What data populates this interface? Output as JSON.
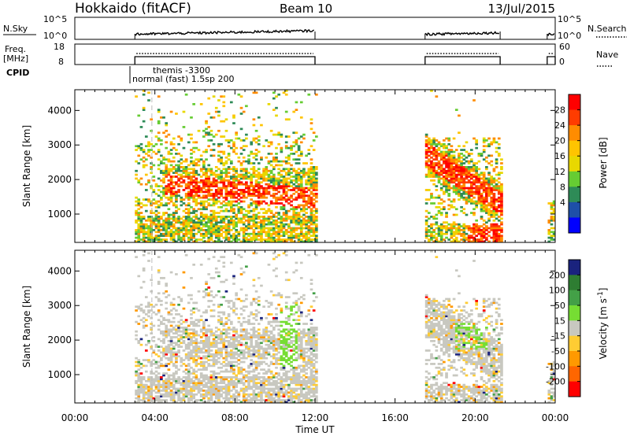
{
  "header": {
    "radar": "Hokkaido (fitACF)",
    "beam": "Beam 10",
    "date": "13/Jul/2015"
  },
  "noise_panel": {
    "left_label": "N.Sky",
    "right_label": "N.Search",
    "left_ticks": [
      "10^5",
      "10^0"
    ],
    "right_ticks": [
      "10^5",
      "10^0"
    ]
  },
  "freq_panel": {
    "left_label_1": "Freq.",
    "left_label_2": "[MHz]",
    "right_label": "Nave",
    "left_ticks": [
      "18",
      "8"
    ],
    "right_ticks": [
      "60",
      "0"
    ]
  },
  "cpid": {
    "label": "CPID",
    "annotation_1": "themis -3300",
    "annotation_2": "normal (fast) 1.5sp 200"
  },
  "axes": {
    "xlabel": "Time UT",
    "ylabel": "Slant Range [km]",
    "x_ticks": [
      "00:00",
      "04:00",
      "08:00",
      "12:00",
      "16:00",
      "20:00",
      "00:00"
    ],
    "y_ticks": [
      "1000",
      "2000",
      "3000",
      "4000"
    ]
  },
  "power_colorbar": {
    "label": "Power [dB]",
    "ticks": [
      "28",
      "24",
      "20",
      "16",
      "12",
      "8",
      "4"
    ],
    "colors": [
      "#ff0000",
      "#ff3c00",
      "#ff8c00",
      "#ffc400",
      "#e8d800",
      "#66cc33",
      "#2e8b57",
      "#1e4fa8",
      "#0000ff"
    ]
  },
  "velocity_colorbar": {
    "label": "Velocity [m s^-1]",
    "ticks": [
      "200",
      "100",
      "50",
      "15",
      "-15",
      "-50",
      "-100",
      "-200"
    ],
    "colors": [
      "#1a237e",
      "#2e7d32",
      "#43a047",
      "#76dd33",
      "#c8c8c0",
      "#ffcc33",
      "#ff9900",
      "#ff6600",
      "#ff0000"
    ]
  },
  "chart_data": [
    {
      "type": "heatmap",
      "title": "Power",
      "xlabel": "Time UT",
      "ylabel": "Slant Range [km]",
      "xlim": [
        "00:00",
        "24:00"
      ],
      "ylim": [
        180,
        4600
      ],
      "colorbar": "Power [dB]",
      "scatter_blocks": [
        {
          "t": [
            "03:00",
            "12:00"
          ],
          "range_km": [
            180,
            4400
          ],
          "typical_db": 20
        },
        {
          "t": [
            "17:30",
            "21:15"
          ],
          "range_km": [
            180,
            3200
          ],
          "typical_db": 24
        },
        {
          "t": [
            "23:40",
            "24:00"
          ],
          "range_km": [
            180,
            1300
          ],
          "typical_db": 20
        }
      ],
      "bands": [
        {
          "t": [
            "04:30",
            "12:00"
          ],
          "range_km": [
            "2000",
            "1400"
          ],
          "db": 28
        },
        {
          "t": [
            "17:30",
            "21:15"
          ],
          "range_km": [
            "2600",
            "1200"
          ],
          "db": 28
        },
        {
          "t": [
            "19:30",
            "21:15"
          ],
          "range_km": [
            "800",
            "300"
          ],
          "db": 28
        },
        {
          "t": [
            "03:00",
            "05:30"
          ],
          "range_km": [
            "800",
            "300"
          ],
          "db": 16
        }
      ]
    },
    {
      "type": "heatmap",
      "title": "Velocity",
      "xlabel": "Time UT",
      "ylabel": "Slant Range [km]",
      "xlim": [
        "00:00",
        "24:00"
      ],
      "ylim": [
        180,
        4600
      ],
      "colorbar": "Velocity [m s^-1]",
      "scatter_blocks": [
        {
          "t": [
            "03:00",
            "12:00"
          ],
          "range_km": [
            180,
            4400
          ],
          "typical_ms": 0
        },
        {
          "t": [
            "17:30",
            "21:15"
          ],
          "range_km": [
            180,
            3200
          ],
          "typical_ms": 0
        },
        {
          "t": [
            "23:40",
            "24:00"
          ],
          "range_km": [
            180,
            1300
          ],
          "typical_ms": 0
        }
      ],
      "bands": [
        {
          "t": [
            "10:20",
            "11:00"
          ],
          "range_km": [
            "3000",
            "1200"
          ],
          "ms": 30
        },
        {
          "t": [
            "19:00",
            "20:30"
          ],
          "range_km": [
            "2500",
            "1700"
          ],
          "ms": 30
        }
      ]
    }
  ]
}
